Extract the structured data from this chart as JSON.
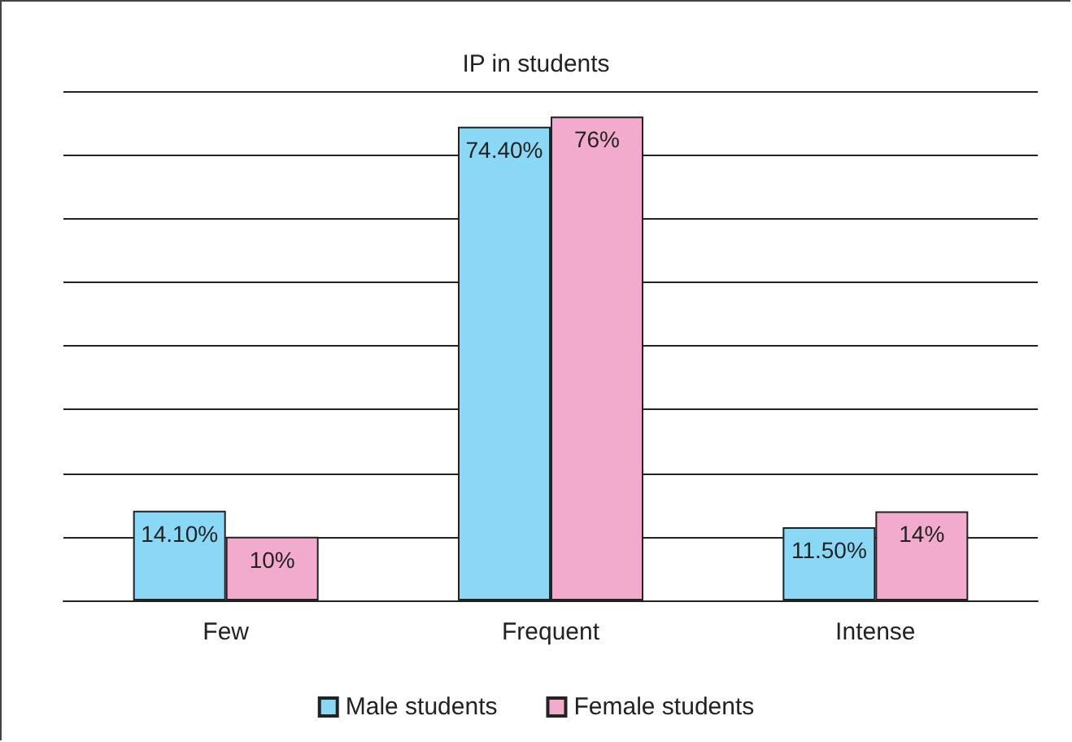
{
  "chart_data": {
    "type": "bar",
    "title": "IP in students",
    "categories": [
      "Few",
      "Frequent",
      "Intense"
    ],
    "series": [
      {
        "name": "Male students",
        "color": "#8ad8f6",
        "values": [
          14.1,
          74.4,
          11.5
        ],
        "value_labels": [
          "14.10%",
          "74.40%",
          "11.50%"
        ]
      },
      {
        "name": "Female students",
        "color": "#f3abcd",
        "values": [
          10,
          76,
          14
        ],
        "value_labels": [
          "10%",
          "76%",
          "14%"
        ]
      }
    ],
    "ylim": [
      0,
      80
    ],
    "yticks": [
      {
        "value": 0,
        "label": null
      },
      {
        "value": 10,
        "label": null
      },
      {
        "value": 20,
        "label": null
      },
      {
        "value": 30,
        "label": null
      },
      {
        "value": 40,
        "label": null
      },
      {
        "value": 50,
        "label": null
      },
      {
        "value": 60,
        "label": null
      },
      {
        "value": 70,
        "label": null
      },
      {
        "value": 80,
        "label": null
      }
    ],
    "tick_labels": "x",
    "grid": "y",
    "legend": "bottom"
  }
}
